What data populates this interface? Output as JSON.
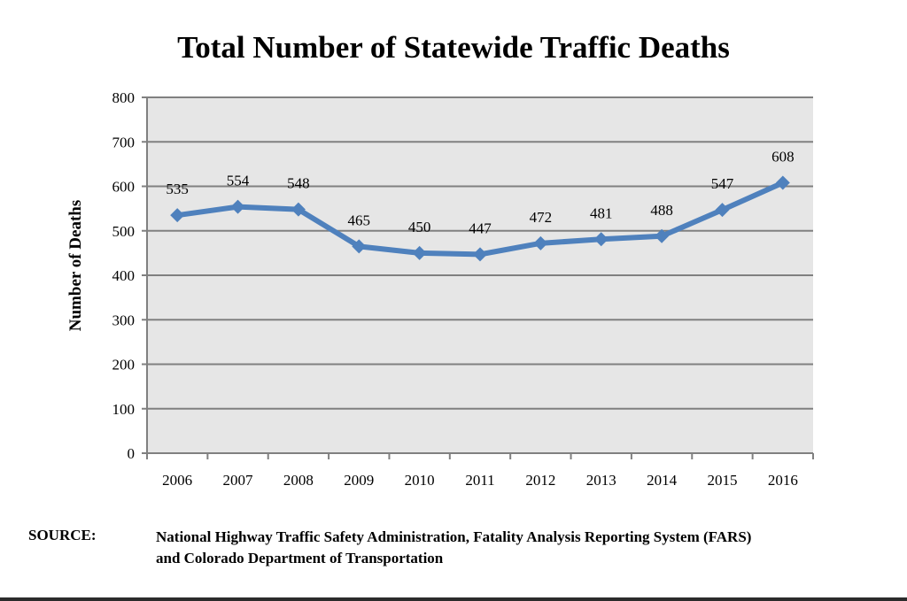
{
  "chart_data": {
    "type": "line",
    "title": "Total Number of Statewide Traffic Deaths",
    "xlabel": "",
    "ylabel": "Number of Deaths",
    "categories": [
      "2006",
      "2007",
      "2008",
      "2009",
      "2010",
      "2011",
      "2012",
      "2013",
      "2014",
      "2015",
      "2016"
    ],
    "values": [
      535,
      554,
      548,
      465,
      450,
      447,
      472,
      481,
      488,
      547,
      608
    ],
    "data_labels": [
      "535",
      "554",
      "548",
      "465",
      "450",
      "447",
      "472",
      "481",
      "488",
      "547",
      "608"
    ],
    "ylim": [
      0,
      800
    ],
    "yticks": [
      "0",
      "100",
      "200",
      "300",
      "400",
      "500",
      "600",
      "700",
      "800"
    ],
    "grid": true,
    "line_color": "#4f81bd",
    "plot_background": "#e6e6e6"
  },
  "source": {
    "label": "SOURCE:",
    "line1": "National Highway Traffic Safety Administration, Fatality Analysis Reporting System (FARS)",
    "line2": "and Colorado Department of Transportation"
  }
}
